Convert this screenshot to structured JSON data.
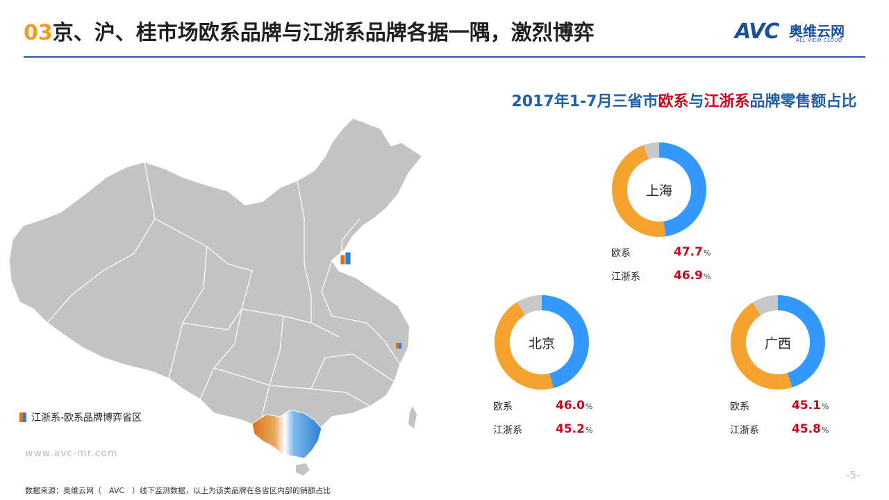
{
  "header": {
    "number": "03",
    "title": "京、沪、桂市场欧系品牌与江浙系品牌各据一隅，激烈博弈"
  },
  "logo": {
    "mark": "AVC",
    "cn": "奥维云网",
    "en": "ALL VIEW CLOUD"
  },
  "map": {
    "legend": "江浙系-欧系品牌博弈省区"
  },
  "chart_title": {
    "p1": "2017年1-7月三省市",
    "p2": "欧系",
    "p3": "与",
    "p4": "江浙系",
    "p5": "品牌零售额占比"
  },
  "chart_data": {
    "type": "pie",
    "charts": [
      {
        "region": "上海",
        "series": [
          {
            "name": "欧系",
            "value": 47.7
          },
          {
            "name": "江浙系",
            "value": 46.9
          }
        ]
      },
      {
        "region": "北京",
        "series": [
          {
            "name": "欧系",
            "value": 46.0
          },
          {
            "name": "江浙系",
            "value": 45.2
          }
        ]
      },
      {
        "region": "广西",
        "series": [
          {
            "name": "欧系",
            "value": 45.1
          },
          {
            "name": "江浙系",
            "value": 45.8
          }
        ]
      }
    ],
    "colors": {
      "欧系": "#3399ff",
      "江浙系": "#f5a22e",
      "other": "#c8c8c8"
    }
  },
  "labels": {
    "ou": "欧系",
    "jz": "江浙系",
    "sh_ou": "47.7",
    "sh_jz": "46.9",
    "bj_ou": "46.0",
    "bj_jz": "45.2",
    "gx_ou": "45.1",
    "gx_jz": "45.8",
    "pct": "%"
  },
  "footer": {
    "site": "www.avc-mr.com",
    "source": "数据来源：奥维云网（　AVC　）线下监测数据，以上为该类品牌在各省区内部的销额占比",
    "page": "-5-"
  }
}
